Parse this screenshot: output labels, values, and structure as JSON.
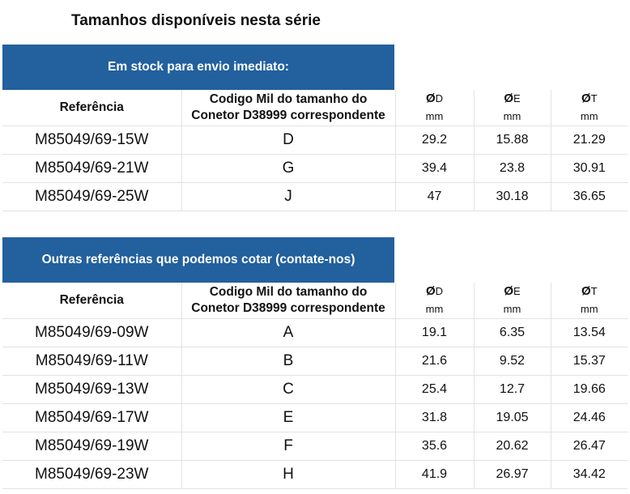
{
  "title": "Tamanhos disponíveis nesta série",
  "headers": {
    "reference": "Referência",
    "code_line1": "Codigo Mil do tamanho do",
    "code_line2": "Conetor D38999 correspondente",
    "d": "D",
    "e": "E",
    "t": "T",
    "diameter_symbol": "Ø",
    "unit": "mm"
  },
  "sections": [
    {
      "banner": "Em stock para envio imediato:",
      "rows": [
        {
          "ref": "M85049/69-15W",
          "code": "D",
          "d": "29.2",
          "e": "15.88",
          "t": "21.29"
        },
        {
          "ref": "M85049/69-21W",
          "code": "G",
          "d": "39.4",
          "e": "23.8",
          "t": "30.91"
        },
        {
          "ref": "M85049/69-25W",
          "code": "J",
          "d": "47",
          "e": "30.18",
          "t": "36.65"
        }
      ]
    },
    {
      "banner": "Outras referências que podemos cotar (contate-nos)",
      "rows": [
        {
          "ref": "M85049/69-09W",
          "code": "A",
          "d": "19.1",
          "e": "6.35",
          "t": "13.54"
        },
        {
          "ref": "M85049/69-11W",
          "code": "B",
          "d": "21.6",
          "e": "9.52",
          "t": "15.37"
        },
        {
          "ref": "M85049/69-13W",
          "code": "C",
          "d": "25.4",
          "e": "12.7",
          "t": "19.66"
        },
        {
          "ref": "M85049/69-17W",
          "code": "E",
          "d": "31.8",
          "e": "19.05",
          "t": "24.46"
        },
        {
          "ref": "M85049/69-19W",
          "code": "F",
          "d": "35.6",
          "e": "20.62",
          "t": "26.47"
        },
        {
          "ref": "M85049/69-23W",
          "code": "H",
          "d": "41.9",
          "e": "26.97",
          "t": "34.42"
        }
      ]
    }
  ],
  "colors": {
    "banner": "#22609e",
    "grid": "#e2e2e2"
  }
}
